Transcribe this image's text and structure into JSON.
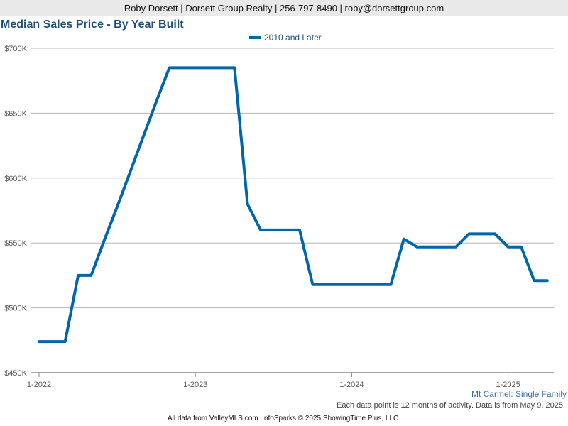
{
  "header": {
    "contact": "Roby Dorsett | Dorsett Group Realty | 256-797-8490 | roby@dorsettgroup.com"
  },
  "chart_data": {
    "type": "line",
    "title": "Median Sales Price - By Year Built",
    "xlabel": "",
    "ylabel": "",
    "ylim": [
      450000,
      700000
    ],
    "y_ticks": [
      450000,
      500000,
      550000,
      600000,
      650000,
      700000
    ],
    "y_tick_labels": [
      "$450K",
      "$500K",
      "$550K",
      "$600K",
      "$650K",
      "$700K"
    ],
    "x_ticks": [
      "2022-01",
      "2023-01",
      "2024-01",
      "2025-01"
    ],
    "x_tick_labels": [
      "1-2022",
      "1-2023",
      "1-2024",
      "1-2025"
    ],
    "x_range": [
      "2022-01",
      "2025-04"
    ],
    "grid": true,
    "legend_position": "top-center",
    "series": [
      {
        "name": "2010 and Later",
        "color": "#0066aa",
        "x": [
          "2022-01",
          "2022-02",
          "2022-03",
          "2022-04",
          "2022-05",
          "2022-06",
          "2022-07",
          "2022-08",
          "2022-09",
          "2022-10",
          "2022-11",
          "2022-12",
          "2023-01",
          "2023-02",
          "2023-03",
          "2023-04",
          "2023-05",
          "2023-06",
          "2023-07",
          "2023-08",
          "2023-09",
          "2023-10",
          "2023-11",
          "2023-12",
          "2024-01",
          "2024-02",
          "2024-03",
          "2024-04",
          "2024-05",
          "2024-06",
          "2024-07",
          "2024-08",
          "2024-09",
          "2024-10",
          "2024-11",
          "2024-12",
          "2025-01",
          "2025-02",
          "2025-03",
          "2025-04"
        ],
        "values": [
          474000,
          474000,
          474000,
          525000,
          525000,
          552000,
          578000,
          605000,
          632000,
          659000,
          685000,
          685000,
          685000,
          685000,
          685000,
          685000,
          580000,
          560000,
          560000,
          560000,
          560000,
          518000,
          518000,
          518000,
          518000,
          518000,
          518000,
          518000,
          553000,
          547000,
          547000,
          547000,
          547000,
          557000,
          557000,
          557000,
          547000,
          547000,
          521000,
          521000
        ]
      }
    ]
  },
  "footer": {
    "region": "Mt Carmel: Single Family",
    "note": "Each data point is 12 months of activity. Data is from May 9, 2025.",
    "source": "All data from ValleyMLS.com. InfoSparks © 2025 ShowingTime Plus, LLC."
  }
}
